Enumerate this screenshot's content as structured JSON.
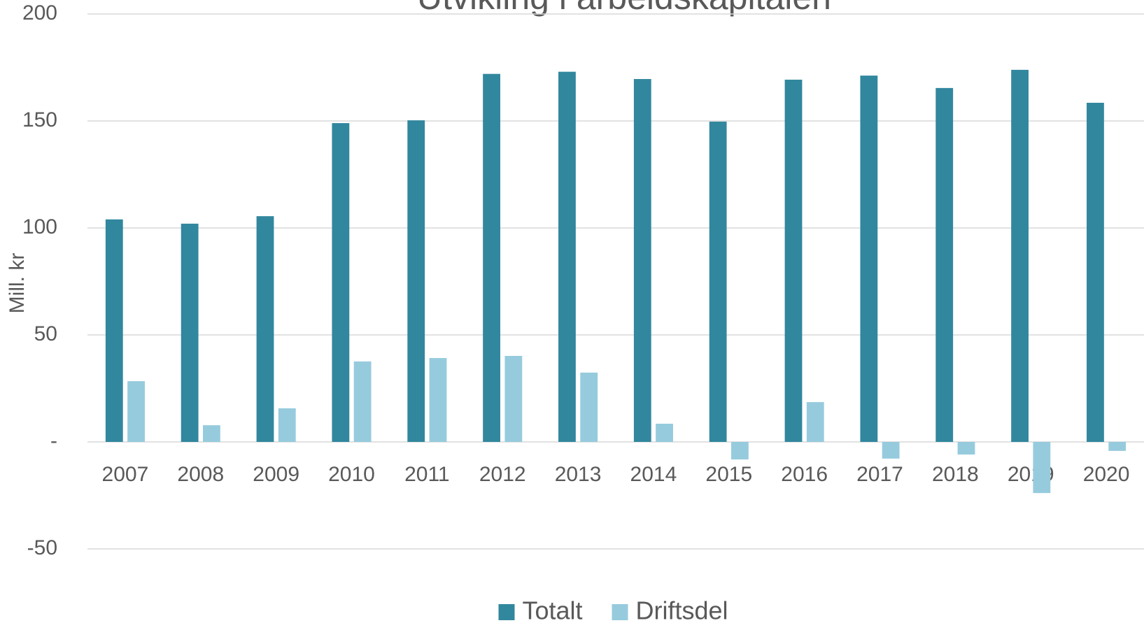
{
  "chart_data": {
    "type": "bar",
    "title": "Utvikling i arbeidskapitalen",
    "y_label": "Mill. kr",
    "categories": [
      "2007",
      "2008",
      "2009",
      "2010",
      "2011",
      "2012",
      "2013",
      "2014",
      "2015",
      "2016",
      "2017",
      "2018",
      "2019",
      "2020"
    ],
    "series": [
      {
        "name": "Totalt",
        "color": "#31879e",
        "values": [
          104,
          102,
          105.5,
          149,
          150.3,
          172,
          173,
          169.6,
          149.7,
          169.3,
          171.2,
          165.4,
          173.9,
          158.5
        ]
      },
      {
        "name": "Driftsdel",
        "color": "#96cbdd",
        "values": [
          28.4,
          7.8,
          15.7,
          37.6,
          39.2,
          40.2,
          32.4,
          8.5,
          -8.2,
          18.6,
          -7.8,
          -5.9,
          -23.9,
          -4.2
        ]
      }
    ],
    "ylim": [
      -50,
      200
    ],
    "yticks": [
      -50,
      {
        "value": 0,
        "label": "-"
      },
      50,
      100,
      150,
      200
    ],
    "grid": true,
    "legend": "bottom"
  }
}
